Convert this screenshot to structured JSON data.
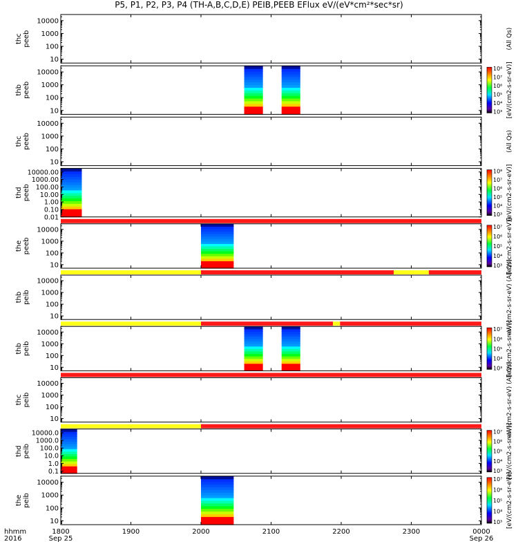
{
  "title": "P5, P1, P2, P3, P4 (TH-A,B,C,D,E) PEIB,PEEB EFlux eV/(eV*cm²*sec*sr)",
  "colors": {
    "flag_red": "#ff1a1a",
    "flag_yellow": "#ffff1a",
    "axis": "#000000"
  },
  "time_axis": {
    "label_line1": "hhmm",
    "label_line2": "2016",
    "ticks": [
      "1800",
      "1900",
      "2000",
      "2100",
      "2200",
      "2300",
      "0000"
    ],
    "date_labels": [
      "Sep 25",
      "Sep 26"
    ],
    "range_hhmm": [
      "1800",
      "2400"
    ]
  },
  "chart_data": [
    {
      "type": "heatmap",
      "ylabel": "thc\npeeb",
      "yticks": [
        "10",
        "100",
        "1000",
        "10000"
      ],
      "ylog": true,
      "ylim": [
        5,
        30000
      ],
      "colorbar_label": "(All Qs)",
      "colorbar_ticks": [],
      "data_intervals": []
    },
    {
      "type": "heatmap",
      "ylabel": "thb\npeeb",
      "yticks": [
        "10",
        "100",
        "1000",
        "10000"
      ],
      "ylog": true,
      "ylim": [
        5,
        30000
      ],
      "colorbar_label": "[eV/(cm2-s-sr-eV)]",
      "colorbar_ticks": [
        "10³",
        "10⁴",
        "10⁵",
        "10⁶",
        "10⁷",
        "10⁸"
      ],
      "data_intervals": [
        [
          "2037",
          "2053"
        ],
        [
          "2109",
          "2125"
        ]
      ]
    },
    {
      "type": "heatmap",
      "ylabel": "thc\npeeb",
      "yticks": [
        "10",
        "100",
        "1000",
        "10000"
      ],
      "ylog": true,
      "ylim": [
        5,
        30000
      ],
      "colorbar_label": "(All Qs)",
      "colorbar_ticks": [],
      "data_intervals": []
    },
    {
      "type": "heatmap",
      "ylabel": "thd\npeeb",
      "yticks": [
        "0.01",
        "0.10",
        "1.00",
        "10.00",
        "100.00",
        "1000.00",
        "10000.00"
      ],
      "ylog": true,
      "ylim": [
        0.01,
        30000
      ],
      "colorbar_label": "[eV/(cm2-s-sr-eV)]",
      "colorbar_ticks": [
        "10³",
        "10⁴",
        "10⁵",
        "10⁶",
        "10⁷",
        "10⁸"
      ],
      "data_intervals": [
        [
          "1800",
          "1818"
        ]
      ]
    },
    {
      "type": "heatmap",
      "ylabel": "the\npeeb",
      "yticks": [
        "10",
        "100",
        "1000",
        "10000"
      ],
      "ylog": true,
      "ylim": [
        5,
        30000
      ],
      "colorbar_label": "[eV/(cm2-s-sr-eV)]",
      "colorbar_ticks": [
        "10³",
        "10⁴",
        "10⁵",
        "10⁶",
        "10⁷"
      ],
      "data_intervals": [
        [
          "2000",
          "2028"
        ]
      ],
      "flag_bar": [
        {
          "from": "1800",
          "to": "2400",
          "color": "red"
        }
      ]
    },
    {
      "type": "heatmap",
      "ylabel": "thb\npeib",
      "yticks": [
        "10",
        "100",
        "1000",
        "10000"
      ],
      "ylog": true,
      "ylim": [
        5,
        30000
      ],
      "colorbar_label": "eV/(cm2-s-sr-eV) (All Qs)",
      "colorbar_ticks": [],
      "data_intervals": [],
      "flag_bar": [
        {
          "from": "1800",
          "to": "2000",
          "color": "yellow"
        },
        {
          "from": "2000",
          "to": "2245",
          "color": "red"
        },
        {
          "from": "2245",
          "to": "2315",
          "color": "yellow"
        },
        {
          "from": "2315",
          "to": "2400",
          "color": "red"
        }
      ]
    },
    {
      "type": "heatmap",
      "ylabel": "thb\npeib",
      "yticks": [
        "10",
        "100",
        "1000",
        "10000"
      ],
      "ylog": true,
      "ylim": [
        5,
        30000
      ],
      "colorbar_label": "[eV/(cm2-s-sr-eV)]",
      "colorbar_ticks": [
        "10³",
        "10⁴",
        "10⁵",
        "10⁶",
        "10⁷"
      ],
      "data_intervals": [
        [
          "2037",
          "2053"
        ],
        [
          "2109",
          "2125"
        ]
      ],
      "flag_bar": [
        {
          "from": "1800",
          "to": "2000",
          "color": "yellow"
        },
        {
          "from": "2000",
          "to": "2153",
          "color": "red"
        },
        {
          "from": "2153",
          "to": "2159",
          "color": "yellow"
        },
        {
          "from": "2159",
          "to": "2400",
          "color": "red"
        }
      ]
    },
    {
      "type": "heatmap",
      "ylabel": "thc\npeib",
      "yticks": [
        "10",
        "100",
        "1000",
        "10000"
      ],
      "ylog": true,
      "ylim": [
        5,
        30000
      ],
      "colorbar_label": "eV/(cm2-s-sr-eV) (All Qs)",
      "colorbar_ticks": [],
      "data_intervals": [],
      "flag_bar": [
        {
          "from": "1800",
          "to": "2400",
          "color": "red"
        }
      ]
    },
    {
      "type": "heatmap",
      "ylabel": "thd\npeib",
      "yticks": [
        "0.1",
        "1.0",
        "10.0",
        "100.0",
        "1000.0",
        "10000.0"
      ],
      "ylog": true,
      "ylim": [
        0.05,
        30000
      ],
      "colorbar_label": "[eV/(cm2-s-sr-eV)]",
      "colorbar_ticks": [
        "10³",
        "10⁴",
        "10⁵",
        "10⁶",
        "10⁷"
      ],
      "data_intervals": [
        [
          "1800",
          "1814"
        ]
      ],
      "flag_bar": [
        {
          "from": "1800",
          "to": "2000",
          "color": "yellow"
        },
        {
          "from": "2000",
          "to": "2400",
          "color": "red"
        }
      ]
    },
    {
      "type": "heatmap",
      "ylabel": "the\npeib",
      "yticks": [
        "10",
        "100",
        "1000",
        "10000"
      ],
      "ylog": true,
      "ylim": [
        5,
        30000
      ],
      "colorbar_label": "[eV/(cm2-s-sr-eV)]",
      "colorbar_ticks": [
        "10³",
        "10⁴",
        "10⁵",
        "10⁶",
        "10⁷"
      ],
      "data_intervals": [
        [
          "2000",
          "2028"
        ]
      ]
    }
  ]
}
